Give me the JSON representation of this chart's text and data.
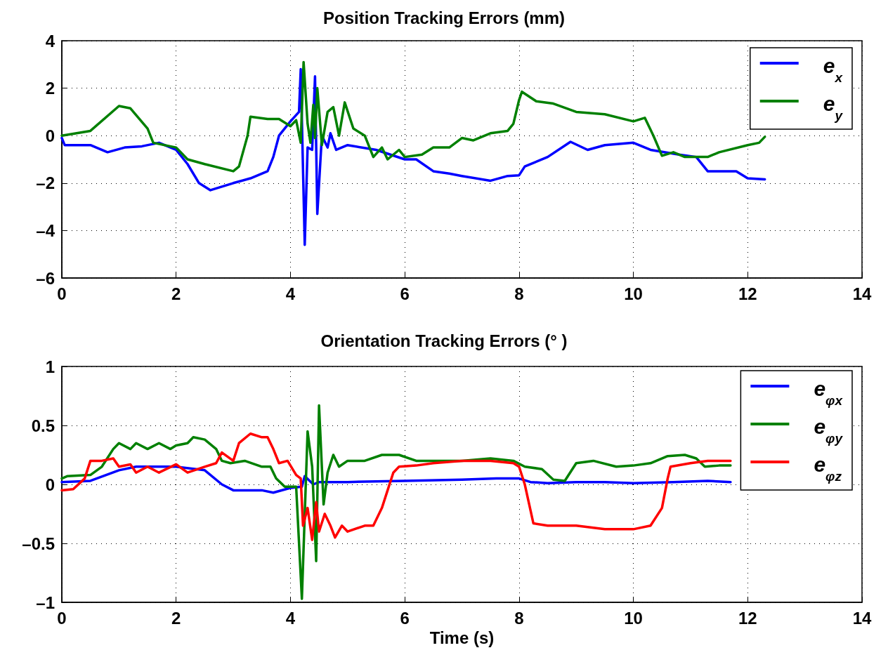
{
  "chart_data": [
    {
      "type": "line",
      "title": "Position Tracking Errors (mm)",
      "xlim": [
        0,
        14
      ],
      "xticks": [
        0,
        2,
        4,
        6,
        8,
        10,
        12,
        14
      ],
      "ylim": [
        -6,
        4
      ],
      "yticks": [
        {
          "value": -6,
          "label": "–6"
        },
        {
          "value": -4,
          "label": "–4"
        },
        {
          "value": -2,
          "label": "–2"
        },
        0,
        2,
        4
      ],
      "grid": true,
      "legend": "top right",
      "marker": "none",
      "line_style": "solid",
      "series": [
        {
          "name": "e$_{x}$",
          "color": "#0000ff",
          "x": [
            0,
            0.05,
            0.5,
            0.8,
            1.1,
            1.4,
            1.7,
            2.0,
            2.2,
            2.4,
            2.6,
            3.0,
            3.3,
            3.6,
            3.7,
            3.8,
            4.0,
            4.15,
            4.18,
            4.25,
            4.3,
            4.38,
            4.43,
            4.47,
            4.55,
            4.65,
            4.7,
            4.8,
            5.0,
            5.5,
            6.0,
            6.2,
            6.5,
            6.78,
            7.0,
            7.5,
            7.8,
            8.0,
            8.1,
            8.5,
            8.9,
            9.2,
            9.5,
            10.0,
            10.3,
            10.8,
            11.1,
            11.3,
            11.8,
            12.0,
            12.3
          ],
          "values": [
            -0.1,
            -0.4,
            -0.4,
            -0.7,
            -0.5,
            -0.45,
            -0.3,
            -0.6,
            -1.2,
            -2.0,
            -2.3,
            -2.0,
            -1.8,
            -1.5,
            -0.9,
            0.0,
            0.6,
            1.0,
            2.8,
            -4.6,
            -0.5,
            -0.6,
            2.5,
            -3.3,
            0.0,
            -0.5,
            0.1,
            -0.6,
            -0.4,
            -0.6,
            -1.0,
            -1.0,
            -1.5,
            -1.6,
            -1.7,
            -1.9,
            -1.7,
            -1.67,
            -1.3,
            -0.9,
            -0.26,
            -0.6,
            -0.4,
            -0.3,
            -0.6,
            -0.8,
            -0.9,
            -1.5,
            -1.5,
            -1.8,
            -1.84
          ]
        },
        {
          "name": "e$_{y}$",
          "color": "#008000",
          "x": [
            0,
            0.5,
            1.0,
            1.2,
            1.5,
            1.6,
            2.0,
            2.2,
            2.5,
            3.0,
            3.1,
            3.25,
            3.3,
            3.6,
            3.8,
            4.0,
            4.1,
            4.18,
            4.23,
            4.3,
            4.35,
            4.4,
            4.43,
            4.47,
            4.55,
            4.65,
            4.75,
            4.85,
            4.95,
            5.1,
            5.3,
            5.45,
            5.6,
            5.7,
            5.9,
            6.0,
            6.3,
            6.5,
            6.78,
            7.0,
            7.2,
            7.5,
            7.8,
            7.9,
            8.0,
            8.05,
            8.3,
            8.6,
            9.0,
            9.5,
            10.0,
            10.2,
            10.35,
            10.5,
            10.7,
            10.9,
            11.3,
            11.5,
            12.0,
            12.2,
            12.3
          ],
          "values": [
            0.0,
            0.2,
            1.25,
            1.15,
            0.3,
            -0.3,
            -0.5,
            -1.0,
            -1.2,
            -1.5,
            -1.3,
            0.0,
            0.8,
            0.7,
            0.7,
            0.4,
            0.65,
            -0.3,
            3.1,
            0.5,
            -0.3,
            1.3,
            -0.1,
            2.0,
            -0.4,
            1.0,
            1.2,
            0.0,
            1.4,
            0.3,
            0.0,
            -0.9,
            -0.5,
            -1.0,
            -0.6,
            -0.9,
            -0.8,
            -0.5,
            -0.5,
            -0.1,
            -0.2,
            0.1,
            0.2,
            0.5,
            1.5,
            1.85,
            1.45,
            1.35,
            1.0,
            0.9,
            0.6,
            0.75,
            0.0,
            -0.85,
            -0.7,
            -0.9,
            -0.9,
            -0.7,
            -0.4,
            -0.3,
            -0.05
          ]
        }
      ]
    },
    {
      "type": "line",
      "title": "Orientation Tracking Errors (° )",
      "xlabel": "Time (s)",
      "xlim": [
        0,
        14
      ],
      "xticks": [
        0,
        2,
        4,
        6,
        8,
        10,
        12,
        14
      ],
      "ylim": [
        -1,
        1
      ],
      "yticks": [
        {
          "value": -1,
          "label": "–1"
        },
        {
          "value": -0.5,
          "label": "–0.5"
        },
        0,
        0.5,
        1
      ],
      "grid": true,
      "legend": "top right",
      "marker": "none",
      "line_style": "solid",
      "series": [
        {
          "name": "e$_{φx}$",
          "color": "#0000ff",
          "x": [
            0,
            0.5,
            1.0,
            1.3,
            2.0,
            2.5,
            2.8,
            3.0,
            3.5,
            3.7,
            4.0,
            4.2,
            4.25,
            4.4,
            4.5,
            5.0,
            6.0,
            7.0,
            7.6,
            8.0,
            8.2,
            8.5,
            9.0,
            9.5,
            10.0,
            10.7,
            11.3,
            11.7
          ],
          "values": [
            0.02,
            0.03,
            0.12,
            0.15,
            0.15,
            0.12,
            0.0,
            -0.05,
            -0.05,
            -0.07,
            -0.03,
            -0.02,
            0.07,
            0.0,
            0.02,
            0.02,
            0.03,
            0.04,
            0.05,
            0.05,
            0.02,
            0.01,
            0.02,
            0.02,
            0.01,
            0.02,
            0.03,
            0.02
          ]
        },
        {
          "name": "e$_{φy}$",
          "color": "#008000",
          "x": [
            0,
            0.1,
            0.5,
            0.7,
            0.9,
            1.0,
            1.2,
            1.3,
            1.5,
            1.7,
            1.9,
            2.0,
            2.2,
            2.3,
            2.5,
            2.7,
            2.8,
            2.95,
            3.2,
            3.5,
            3.65,
            3.75,
            3.9,
            4.1,
            4.2,
            4.3,
            4.38,
            4.45,
            4.5,
            4.58,
            4.65,
            4.75,
            4.85,
            5.0,
            5.3,
            5.6,
            5.9,
            6.2,
            6.5,
            7.0,
            7.5,
            7.9,
            8.1,
            8.4,
            8.6,
            8.8,
            9.0,
            9.3,
            9.7,
            10.0,
            10.3,
            10.6,
            10.9,
            11.1,
            11.25,
            11.5,
            11.7
          ],
          "values": [
            0.05,
            0.07,
            0.08,
            0.15,
            0.3,
            0.35,
            0.3,
            0.35,
            0.3,
            0.35,
            0.3,
            0.33,
            0.35,
            0.4,
            0.38,
            0.3,
            0.2,
            0.18,
            0.2,
            0.15,
            0.15,
            0.05,
            -0.02,
            -0.02,
            -0.97,
            0.45,
            0.15,
            -0.65,
            0.67,
            -0.17,
            0.1,
            0.25,
            0.15,
            0.2,
            0.2,
            0.25,
            0.25,
            0.2,
            0.2,
            0.2,
            0.22,
            0.2,
            0.15,
            0.13,
            0.04,
            0.03,
            0.18,
            0.2,
            0.15,
            0.16,
            0.18,
            0.24,
            0.25,
            0.22,
            0.15,
            0.16,
            0.16
          ]
        },
        {
          "name": "e$_{φz}$",
          "color": "#ff0000",
          "x": [
            0,
            0.2,
            0.4,
            0.5,
            0.7,
            0.9,
            1.0,
            1.2,
            1.3,
            1.5,
            1.7,
            2.0,
            2.2,
            2.5,
            2.7,
            2.8,
            3.0,
            3.1,
            3.3,
            3.5,
            3.6,
            3.7,
            3.8,
            3.95,
            4.1,
            4.18,
            4.22,
            4.3,
            4.38,
            4.45,
            4.5,
            4.6,
            4.7,
            4.78,
            4.9,
            5.0,
            5.3,
            5.45,
            5.6,
            5.7,
            5.8,
            5.9,
            6.2,
            6.5,
            7.0,
            7.5,
            7.9,
            8.0,
            8.1,
            8.25,
            8.5,
            9.0,
            9.5,
            10.0,
            10.3,
            10.5,
            10.6,
            10.65,
            11.0,
            11.3,
            11.5,
            11.7
          ],
          "values": [
            -0.05,
            -0.04,
            0.05,
            0.2,
            0.2,
            0.22,
            0.15,
            0.17,
            0.1,
            0.15,
            0.1,
            0.17,
            0.1,
            0.15,
            0.18,
            0.27,
            0.2,
            0.35,
            0.43,
            0.4,
            0.4,
            0.3,
            0.18,
            0.2,
            0.08,
            0.05,
            -0.35,
            -0.2,
            -0.47,
            -0.15,
            -0.4,
            -0.25,
            -0.35,
            -0.45,
            -0.35,
            -0.4,
            -0.35,
            -0.35,
            -0.2,
            -0.05,
            0.1,
            0.15,
            0.16,
            0.18,
            0.2,
            0.2,
            0.18,
            0.15,
            0.0,
            -0.33,
            -0.35,
            -0.35,
            -0.38,
            -0.38,
            -0.35,
            -0.2,
            0.05,
            0.15,
            0.18,
            0.2,
            0.2,
            0.2
          ]
        }
      ]
    }
  ]
}
